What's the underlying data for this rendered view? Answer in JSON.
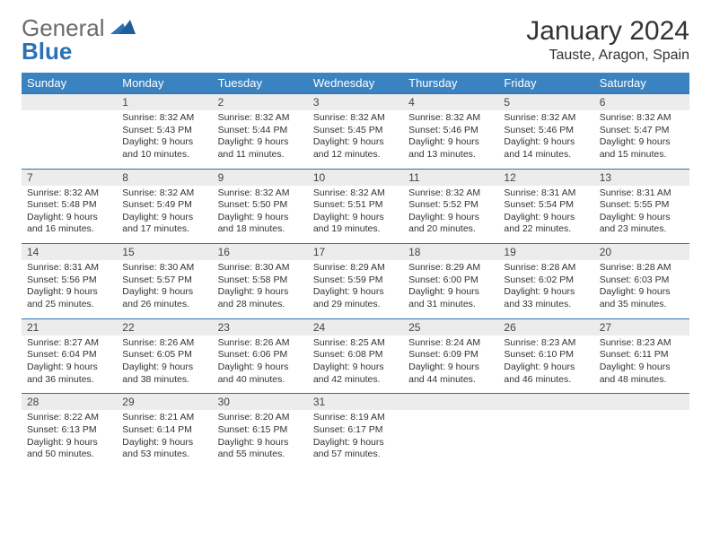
{
  "logo": {
    "text1": "General",
    "text2": "Blue"
  },
  "header": {
    "title": "January 2024",
    "location": "Tauste, Aragon, Spain"
  },
  "colors": {
    "header_bg": "#3b83c0",
    "header_fg": "#ffffff",
    "daynum_bg": "#ececec",
    "rule": "#2a72b5",
    "text": "#333333"
  },
  "weekdays": [
    "Sunday",
    "Monday",
    "Tuesday",
    "Wednesday",
    "Thursday",
    "Friday",
    "Saturday"
  ],
  "weeks": [
    [
      null,
      {
        "n": "1",
        "sr": "Sunrise: 8:32 AM",
        "ss": "Sunset: 5:43 PM",
        "dl": "Daylight: 9 hours and 10 minutes."
      },
      {
        "n": "2",
        "sr": "Sunrise: 8:32 AM",
        "ss": "Sunset: 5:44 PM",
        "dl": "Daylight: 9 hours and 11 minutes."
      },
      {
        "n": "3",
        "sr": "Sunrise: 8:32 AM",
        "ss": "Sunset: 5:45 PM",
        "dl": "Daylight: 9 hours and 12 minutes."
      },
      {
        "n": "4",
        "sr": "Sunrise: 8:32 AM",
        "ss": "Sunset: 5:46 PM",
        "dl": "Daylight: 9 hours and 13 minutes."
      },
      {
        "n": "5",
        "sr": "Sunrise: 8:32 AM",
        "ss": "Sunset: 5:46 PM",
        "dl": "Daylight: 9 hours and 14 minutes."
      },
      {
        "n": "6",
        "sr": "Sunrise: 8:32 AM",
        "ss": "Sunset: 5:47 PM",
        "dl": "Daylight: 9 hours and 15 minutes."
      }
    ],
    [
      {
        "n": "7",
        "sr": "Sunrise: 8:32 AM",
        "ss": "Sunset: 5:48 PM",
        "dl": "Daylight: 9 hours and 16 minutes."
      },
      {
        "n": "8",
        "sr": "Sunrise: 8:32 AM",
        "ss": "Sunset: 5:49 PM",
        "dl": "Daylight: 9 hours and 17 minutes."
      },
      {
        "n": "9",
        "sr": "Sunrise: 8:32 AM",
        "ss": "Sunset: 5:50 PM",
        "dl": "Daylight: 9 hours and 18 minutes."
      },
      {
        "n": "10",
        "sr": "Sunrise: 8:32 AM",
        "ss": "Sunset: 5:51 PM",
        "dl": "Daylight: 9 hours and 19 minutes."
      },
      {
        "n": "11",
        "sr": "Sunrise: 8:32 AM",
        "ss": "Sunset: 5:52 PM",
        "dl": "Daylight: 9 hours and 20 minutes."
      },
      {
        "n": "12",
        "sr": "Sunrise: 8:31 AM",
        "ss": "Sunset: 5:54 PM",
        "dl": "Daylight: 9 hours and 22 minutes."
      },
      {
        "n": "13",
        "sr": "Sunrise: 8:31 AM",
        "ss": "Sunset: 5:55 PM",
        "dl": "Daylight: 9 hours and 23 minutes."
      }
    ],
    [
      {
        "n": "14",
        "sr": "Sunrise: 8:31 AM",
        "ss": "Sunset: 5:56 PM",
        "dl": "Daylight: 9 hours and 25 minutes."
      },
      {
        "n": "15",
        "sr": "Sunrise: 8:30 AM",
        "ss": "Sunset: 5:57 PM",
        "dl": "Daylight: 9 hours and 26 minutes."
      },
      {
        "n": "16",
        "sr": "Sunrise: 8:30 AM",
        "ss": "Sunset: 5:58 PM",
        "dl": "Daylight: 9 hours and 28 minutes."
      },
      {
        "n": "17",
        "sr": "Sunrise: 8:29 AM",
        "ss": "Sunset: 5:59 PM",
        "dl": "Daylight: 9 hours and 29 minutes."
      },
      {
        "n": "18",
        "sr": "Sunrise: 8:29 AM",
        "ss": "Sunset: 6:00 PM",
        "dl": "Daylight: 9 hours and 31 minutes."
      },
      {
        "n": "19",
        "sr": "Sunrise: 8:28 AM",
        "ss": "Sunset: 6:02 PM",
        "dl": "Daylight: 9 hours and 33 minutes."
      },
      {
        "n": "20",
        "sr": "Sunrise: 8:28 AM",
        "ss": "Sunset: 6:03 PM",
        "dl": "Daylight: 9 hours and 35 minutes."
      }
    ],
    [
      {
        "n": "21",
        "sr": "Sunrise: 8:27 AM",
        "ss": "Sunset: 6:04 PM",
        "dl": "Daylight: 9 hours and 36 minutes."
      },
      {
        "n": "22",
        "sr": "Sunrise: 8:26 AM",
        "ss": "Sunset: 6:05 PM",
        "dl": "Daylight: 9 hours and 38 minutes."
      },
      {
        "n": "23",
        "sr": "Sunrise: 8:26 AM",
        "ss": "Sunset: 6:06 PM",
        "dl": "Daylight: 9 hours and 40 minutes."
      },
      {
        "n": "24",
        "sr": "Sunrise: 8:25 AM",
        "ss": "Sunset: 6:08 PM",
        "dl": "Daylight: 9 hours and 42 minutes."
      },
      {
        "n": "25",
        "sr": "Sunrise: 8:24 AM",
        "ss": "Sunset: 6:09 PM",
        "dl": "Daylight: 9 hours and 44 minutes."
      },
      {
        "n": "26",
        "sr": "Sunrise: 8:23 AM",
        "ss": "Sunset: 6:10 PM",
        "dl": "Daylight: 9 hours and 46 minutes."
      },
      {
        "n": "27",
        "sr": "Sunrise: 8:23 AM",
        "ss": "Sunset: 6:11 PM",
        "dl": "Daylight: 9 hours and 48 minutes."
      }
    ],
    [
      {
        "n": "28",
        "sr": "Sunrise: 8:22 AM",
        "ss": "Sunset: 6:13 PM",
        "dl": "Daylight: 9 hours and 50 minutes."
      },
      {
        "n": "29",
        "sr": "Sunrise: 8:21 AM",
        "ss": "Sunset: 6:14 PM",
        "dl": "Daylight: 9 hours and 53 minutes."
      },
      {
        "n": "30",
        "sr": "Sunrise: 8:20 AM",
        "ss": "Sunset: 6:15 PM",
        "dl": "Daylight: 9 hours and 55 minutes."
      },
      {
        "n": "31",
        "sr": "Sunrise: 8:19 AM",
        "ss": "Sunset: 6:17 PM",
        "dl": "Daylight: 9 hours and 57 minutes."
      },
      null,
      null,
      null
    ]
  ]
}
